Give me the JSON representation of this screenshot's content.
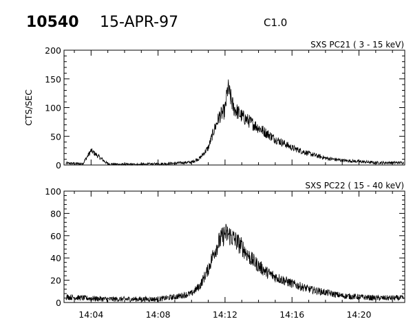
{
  "header": {
    "event_id": "10540",
    "date": "15-APR-97",
    "goes_class": "C1.0"
  },
  "chart_data": [
    {
      "type": "line",
      "title": "SXS PC21  (  3 - 15 keV)",
      "ylabel": "CTS/SEC",
      "xlabel": "",
      "x_range": [
        "14:02:23",
        "14:22:44"
      ],
      "ylim": [
        0,
        200
      ],
      "yticks": [
        0,
        50,
        100,
        150,
        200
      ],
      "xticks": [
        "14:04",
        "14:08",
        "14:12",
        "14:16",
        "14:20"
      ],
      "grid": false,
      "series": [
        {
          "color": "#000000",
          "x": [
            "14:02:30",
            "14:03:30",
            "14:04:00",
            "14:05:00",
            "14:06:00",
            "14:07:00",
            "14:08:00",
            "14:09:00",
            "14:10:00",
            "14:10:30",
            "14:11:00",
            "14:11:20",
            "14:11:40",
            "14:12:00",
            "14:12:10",
            "14:12:30",
            "14:13:00",
            "14:13:30",
            "14:14:00",
            "14:14:30",
            "14:15:00",
            "14:15:30",
            "14:16:00",
            "14:17:00",
            "14:18:00",
            "14:19:00",
            "14:20:00",
            "14:21:00",
            "14:22:40"
          ],
          "values": [
            3,
            2,
            25,
            2,
            1,
            1,
            2,
            3,
            5,
            12,
            30,
            60,
            85,
            95,
            135,
            100,
            85,
            75,
            65,
            55,
            45,
            38,
            30,
            20,
            12,
            8,
            6,
            4,
            4
          ]
        }
      ]
    },
    {
      "type": "line",
      "title": "SXS PC22  ( 15 - 40 keV)",
      "ylabel": "",
      "xlabel": "",
      "x_range": [
        "14:02:23",
        "14:22:44"
      ],
      "ylim": [
        0,
        100
      ],
      "yticks": [
        0,
        20,
        40,
        60,
        80,
        100
      ],
      "xticks": [
        "14:04",
        "14:08",
        "14:12",
        "14:16",
        "14:20"
      ],
      "grid": false,
      "series": [
        {
          "color": "#000000",
          "x": [
            "14:02:30",
            "14:03:30",
            "14:05:00",
            "14:06:00",
            "14:07:00",
            "14:08:00",
            "14:09:00",
            "14:10:00",
            "14:10:30",
            "14:11:00",
            "14:11:20",
            "14:11:40",
            "14:12:00",
            "14:12:20",
            "14:12:40",
            "14:13:00",
            "14:13:30",
            "14:14:00",
            "14:14:30",
            "14:15:00",
            "14:15:30",
            "14:16:00",
            "14:17:00",
            "14:18:00",
            "14:19:00",
            "14:20:00",
            "14:21:00",
            "14:22:40"
          ],
          "values": [
            5,
            4,
            3,
            3,
            3,
            3,
            5,
            8,
            15,
            30,
            45,
            55,
            62,
            60,
            55,
            50,
            40,
            33,
            27,
            23,
            20,
            17,
            12,
            9,
            6,
            5,
            4,
            4
          ]
        }
      ]
    }
  ]
}
